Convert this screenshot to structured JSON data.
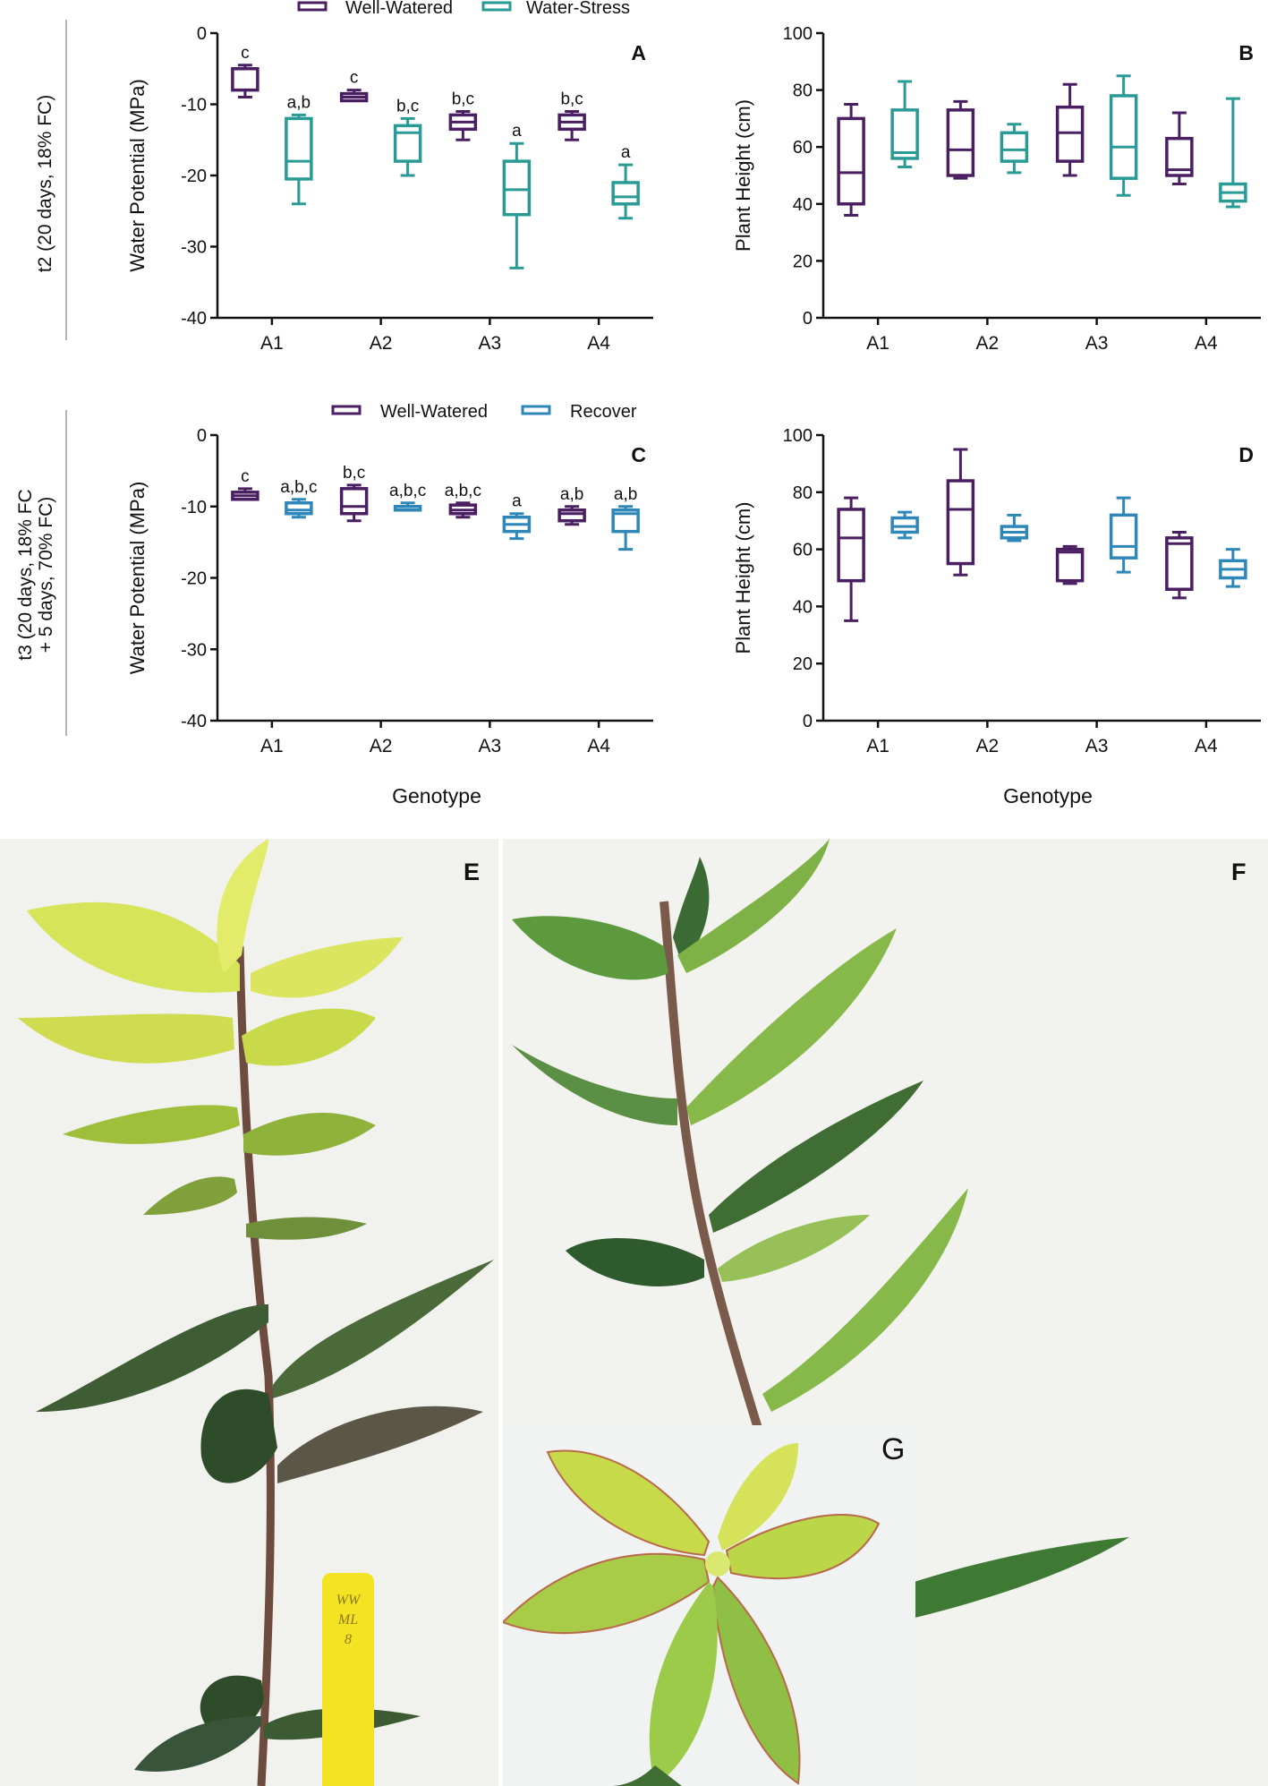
{
  "colors": {
    "well_watered": "#4a1f61",
    "water_stress": "#2a9a95",
    "recover": "#2e87b8",
    "axis": "#111111"
  },
  "row_labels": {
    "t2": "t2 (20 days, 18% FC)",
    "t3_line1": "t3 (20 days, 18% FC",
    "t3_line2": "+ 5 days, 70% FC)"
  },
  "legends": {
    "top": [
      {
        "name": "Well-Watered",
        "color": "#4a1f61"
      },
      {
        "name": "Water-Stress",
        "color": "#2a9a95"
      }
    ],
    "bottom": [
      {
        "name": "Well-Watered",
        "color": "#4a1f61"
      },
      {
        "name": "Recover",
        "color": "#2e87b8"
      }
    ]
  },
  "genotype_label": "Genotype",
  "photo_panels": {
    "E": "E",
    "F": "F",
    "G": "G",
    "tag_text": [
      "WW",
      "ML",
      "8"
    ]
  },
  "chart_data": [
    {
      "panel": "A",
      "type": "boxplot",
      "ylabel": "Water Potential (MPa)",
      "ylim": [
        -40,
        0
      ],
      "yticks": [
        0,
        -10,
        -20,
        -30,
        -40
      ],
      "categories": [
        "A1",
        "A2",
        "A3",
        "A4"
      ],
      "series": [
        {
          "name": "Well-Watered",
          "color": "#4a1f61",
          "boxes": [
            {
              "min": -9,
              "q1": -8,
              "median": -8,
              "q3": -5,
              "max": -4.5,
              "label": "c"
            },
            {
              "min": -9.5,
              "q1": -9.5,
              "median": -9,
              "q3": -8.5,
              "max": -8,
              "label": "c"
            },
            {
              "min": -15,
              "q1": -13.5,
              "median": -12.5,
              "q3": -11.5,
              "max": -11,
              "label": "b,c"
            },
            {
              "min": -15,
              "q1": -13.5,
              "median": -12.5,
              "q3": -11.5,
              "max": -11,
              "label": "b,c"
            }
          ]
        },
        {
          "name": "Water-Stress",
          "color": "#2a9a95",
          "boxes": [
            {
              "min": -24,
              "q1": -20.5,
              "median": -18,
              "q3": -12,
              "max": -11.5,
              "label": "a,b"
            },
            {
              "min": -20,
              "q1": -18,
              "median": -14,
              "q3": -13,
              "max": -12,
              "label": "b,c"
            },
            {
              "min": -33,
              "q1": -25.5,
              "median": -22,
              "q3": -18,
              "max": -15.5,
              "label": "a"
            },
            {
              "min": -26,
              "q1": -24,
              "median": -23,
              "q3": -21,
              "max": -18.5,
              "label": "a"
            }
          ]
        }
      ]
    },
    {
      "panel": "B",
      "type": "boxplot",
      "ylabel": "Plant Height (cm)",
      "ylim": [
        0,
        100
      ],
      "yticks": [
        0,
        20,
        40,
        60,
        80,
        100
      ],
      "categories": [
        "A1",
        "A2",
        "A3",
        "A4"
      ],
      "series": [
        {
          "name": "Well-Watered",
          "color": "#4a1f61",
          "boxes": [
            {
              "min": 36,
              "q1": 40,
              "median": 51,
              "q3": 70,
              "max": 75
            },
            {
              "min": 49,
              "q1": 50,
              "median": 59,
              "q3": 73,
              "max": 76
            },
            {
              "min": 50,
              "q1": 55,
              "median": 65,
              "q3": 74,
              "max": 82
            },
            {
              "min": 47,
              "q1": 50,
              "median": 52,
              "q3": 63,
              "max": 72
            }
          ]
        },
        {
          "name": "Water-Stress",
          "color": "#2a9a95",
          "boxes": [
            {
              "min": 53,
              "q1": 56,
              "median": 58,
              "q3": 73,
              "max": 83
            },
            {
              "min": 51,
              "q1": 55,
              "median": 59,
              "q3": 65,
              "max": 68
            },
            {
              "min": 43,
              "q1": 49,
              "median": 60,
              "q3": 78,
              "max": 85
            },
            {
              "min": 39,
              "q1": 41,
              "median": 44,
              "q3": 47,
              "max": 77
            }
          ]
        }
      ]
    },
    {
      "panel": "C",
      "type": "boxplot",
      "ylabel": "Water Potential (MPa)",
      "ylim": [
        -40,
        0
      ],
      "yticks": [
        0,
        -10,
        -20,
        -30,
        -40
      ],
      "categories": [
        "A1",
        "A2",
        "A3",
        "A4"
      ],
      "series": [
        {
          "name": "Well-Watered",
          "color": "#4a1f61",
          "boxes": [
            {
              "min": -9,
              "q1": -9,
              "median": -8.5,
              "q3": -8,
              "max": -7.5,
              "label": "c"
            },
            {
              "min": -12,
              "q1": -11,
              "median": -10,
              "q3": -7.5,
              "max": -7,
              "label": "b,c"
            },
            {
              "min": -11.5,
              "q1": -11,
              "median": -10.5,
              "q3": -9.8,
              "max": -9.5,
              "label": "a,b,c"
            },
            {
              "min": -12.5,
              "q1": -12,
              "median": -11,
              "q3": -10.5,
              "max": -10,
              "label": "a,b"
            }
          ]
        },
        {
          "name": "Recover",
          "color": "#2e87b8",
          "boxes": [
            {
              "min": -11.5,
              "q1": -11,
              "median": -10.5,
              "q3": -9.5,
              "max": -9,
              "label": "a,b,c"
            },
            {
              "min": -10.5,
              "q1": -10.5,
              "median": -10,
              "q3": -10,
              "max": -9.5,
              "label": "a,b,c"
            },
            {
              "min": -14.5,
              "q1": -13.5,
              "median": -12.5,
              "q3": -11.5,
              "max": -11,
              "label": "a"
            },
            {
              "min": -16,
              "q1": -13.5,
              "median": -11,
              "q3": -10.5,
              "max": -10,
              "label": "a,b"
            }
          ]
        }
      ]
    },
    {
      "panel": "D",
      "type": "boxplot",
      "ylabel": "Plant Height (cm)",
      "ylim": [
        0,
        100
      ],
      "yticks": [
        0,
        20,
        40,
        60,
        80,
        100
      ],
      "categories": [
        "A1",
        "A2",
        "A3",
        "A4"
      ],
      "series": [
        {
          "name": "Well-Watered",
          "color": "#4a1f61",
          "boxes": [
            {
              "min": 35,
              "q1": 49,
              "median": 64,
              "q3": 74,
              "max": 78
            },
            {
              "min": 51,
              "q1": 55,
              "median": 74,
              "q3": 84,
              "max": 95
            },
            {
              "min": 48,
              "q1": 49,
              "median": 59,
              "q3": 60,
              "max": 61
            },
            {
              "min": 43,
              "q1": 46,
              "median": 62,
              "q3": 64,
              "max": 66
            }
          ]
        },
        {
          "name": "Recover",
          "color": "#2e87b8",
          "boxes": [
            {
              "min": 64,
              "q1": 66,
              "median": 68,
              "q3": 71,
              "max": 73
            },
            {
              "min": 63,
              "q1": 64,
              "median": 66,
              "q3": 68,
              "max": 72
            },
            {
              "min": 52,
              "q1": 57,
              "median": 61,
              "q3": 72,
              "max": 78
            },
            {
              "min": 47,
              "q1": 50,
              "median": 53,
              "q3": 56,
              "max": 60
            }
          ]
        }
      ]
    }
  ]
}
